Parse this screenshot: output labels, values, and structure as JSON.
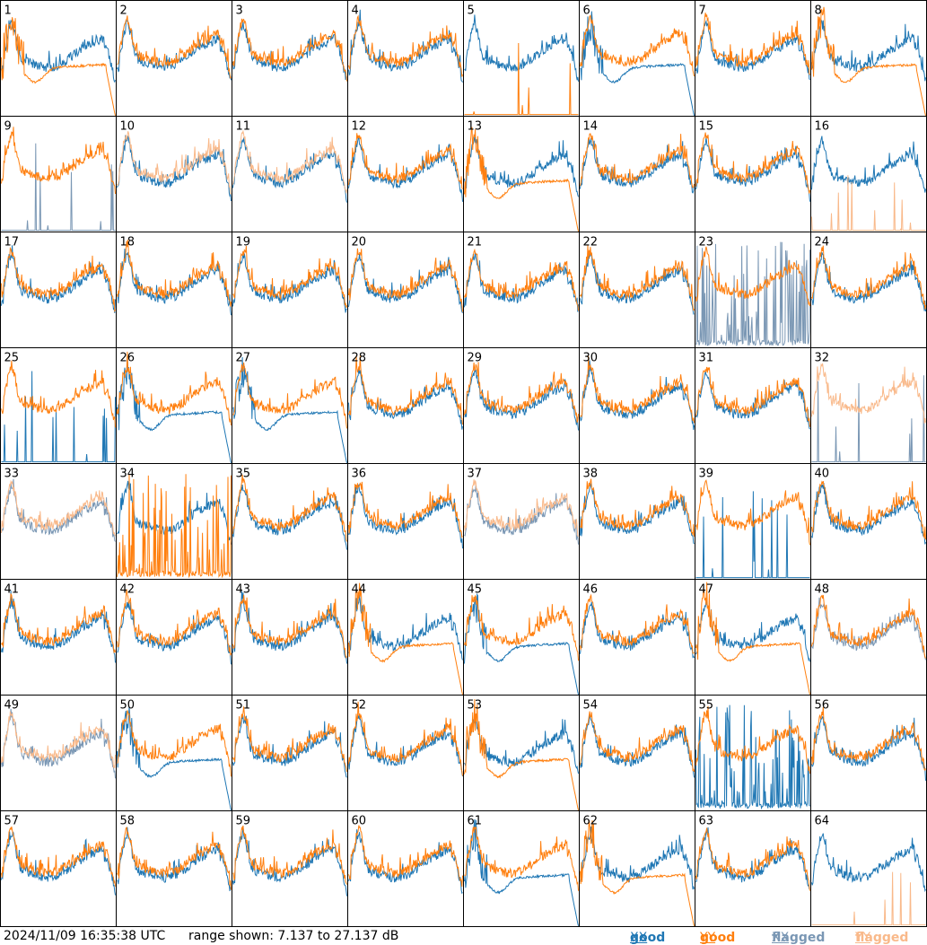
{
  "footer": {
    "timestamp": "2024/11/09 16:35:38 UTC",
    "range_text": "range shown: 7.137 to 27.137 dB"
  },
  "legend": [
    {
      "key": "good_xx",
      "label": "good",
      "pol": "XX",
      "color": "#1f77b4"
    },
    {
      "key": "good_yy",
      "label": "good",
      "pol": "YY",
      "color": "#ff7f0e"
    },
    {
      "key": "flagged_xx",
      "label": "flagged",
      "pol": "XX",
      "color": "#7a97b4"
    },
    {
      "key": "flagged_yy",
      "label": "flagged",
      "pol": "YY",
      "color": "#f9b98a"
    }
  ],
  "chart_data": {
    "type": "line",
    "grid": {
      "rows": 8,
      "cols": 8
    },
    "ylim": [
      7.137,
      27.137
    ],
    "yunit": "dB",
    "panels": [
      {
        "id": "1",
        "xx": "good",
        "yy": "good",
        "xx_shape": "normal",
        "yy_shape": "droop"
      },
      {
        "id": "2",
        "xx": "good",
        "yy": "good",
        "xx_shape": "normal",
        "yy_shape": "normal"
      },
      {
        "id": "3",
        "xx": "good",
        "yy": "good",
        "xx_shape": "normal",
        "yy_shape": "normal"
      },
      {
        "id": "4",
        "xx": "good",
        "yy": "good",
        "xx_shape": "normal",
        "yy_shape": "normal"
      },
      {
        "id": "5",
        "xx": "good",
        "yy": "good",
        "xx_shape": "normal",
        "yy_shape": "dead"
      },
      {
        "id": "6",
        "xx": "good",
        "yy": "good",
        "xx_shape": "droop",
        "yy_shape": "normal"
      },
      {
        "id": "7",
        "xx": "good",
        "yy": "good",
        "xx_shape": "normal",
        "yy_shape": "normal"
      },
      {
        "id": "8",
        "xx": "good",
        "yy": "good",
        "xx_shape": "normal",
        "yy_shape": "droop"
      },
      {
        "id": "9",
        "xx": "flagged",
        "yy": "good",
        "xx_shape": "dead",
        "yy_shape": "normal"
      },
      {
        "id": "10",
        "xx": "good",
        "yy": "flagged",
        "xx_shape": "normal",
        "yy_shape": "normal"
      },
      {
        "id": "11",
        "xx": "good",
        "yy": "flagged",
        "xx_shape": "normal",
        "yy_shape": "normal"
      },
      {
        "id": "12",
        "xx": "good",
        "yy": "good",
        "xx_shape": "normal",
        "yy_shape": "normal"
      },
      {
        "id": "13",
        "xx": "good",
        "yy": "good",
        "xx_shape": "normal",
        "yy_shape": "droop"
      },
      {
        "id": "14",
        "xx": "good",
        "yy": "good",
        "xx_shape": "normal",
        "yy_shape": "normal"
      },
      {
        "id": "15",
        "xx": "good",
        "yy": "good",
        "xx_shape": "normal",
        "yy_shape": "normal"
      },
      {
        "id": "16",
        "xx": "good",
        "yy": "flagged",
        "xx_shape": "normal",
        "yy_shape": "dead"
      },
      {
        "id": "17",
        "xx": "good",
        "yy": "good",
        "xx_shape": "normal",
        "yy_shape": "normal"
      },
      {
        "id": "18",
        "xx": "good",
        "yy": "good",
        "xx_shape": "normal",
        "yy_shape": "normal"
      },
      {
        "id": "19",
        "xx": "good",
        "yy": "good",
        "xx_shape": "normal",
        "yy_shape": "normal"
      },
      {
        "id": "20",
        "xx": "good",
        "yy": "good",
        "xx_shape": "normal",
        "yy_shape": "normal"
      },
      {
        "id": "21",
        "xx": "good",
        "yy": "good",
        "xx_shape": "normal",
        "yy_shape": "normal"
      },
      {
        "id": "22",
        "xx": "good",
        "yy": "good",
        "xx_shape": "normal",
        "yy_shape": "normal"
      },
      {
        "id": "23",
        "xx": "flagged",
        "yy": "good",
        "xx_shape": "noisy",
        "yy_shape": "normal"
      },
      {
        "id": "24",
        "xx": "good",
        "yy": "good",
        "xx_shape": "normal",
        "yy_shape": "normal"
      },
      {
        "id": "25",
        "xx": "good",
        "yy": "good",
        "xx_shape": "dead",
        "yy_shape": "normal"
      },
      {
        "id": "26",
        "xx": "good",
        "yy": "good",
        "xx_shape": "droop",
        "yy_shape": "normal"
      },
      {
        "id": "27",
        "xx": "good",
        "yy": "good",
        "xx_shape": "droop",
        "yy_shape": "normal"
      },
      {
        "id": "28",
        "xx": "good",
        "yy": "good",
        "xx_shape": "normal",
        "yy_shape": "normal"
      },
      {
        "id": "29",
        "xx": "good",
        "yy": "good",
        "xx_shape": "normal",
        "yy_shape": "normal"
      },
      {
        "id": "30",
        "xx": "good",
        "yy": "good",
        "xx_shape": "normal",
        "yy_shape": "normal"
      },
      {
        "id": "31",
        "xx": "good",
        "yy": "good",
        "xx_shape": "normal",
        "yy_shape": "normal"
      },
      {
        "id": "32",
        "xx": "flagged",
        "yy": "flagged",
        "xx_shape": "dead",
        "yy_shape": "normal"
      },
      {
        "id": "33",
        "xx": "flagged",
        "yy": "flagged",
        "xx_shape": "normal",
        "yy_shape": "normal"
      },
      {
        "id": "34",
        "xx": "good",
        "yy": "good",
        "xx_shape": "normal",
        "yy_shape": "noisy"
      },
      {
        "id": "35",
        "xx": "good",
        "yy": "good",
        "xx_shape": "normal",
        "yy_shape": "normal"
      },
      {
        "id": "36",
        "xx": "good",
        "yy": "good",
        "xx_shape": "normal",
        "yy_shape": "normal"
      },
      {
        "id": "37",
        "xx": "flagged",
        "yy": "flagged",
        "xx_shape": "normal",
        "yy_shape": "normal"
      },
      {
        "id": "38",
        "xx": "good",
        "yy": "good",
        "xx_shape": "normal",
        "yy_shape": "normal"
      },
      {
        "id": "39",
        "xx": "good",
        "yy": "good",
        "xx_shape": "dead",
        "yy_shape": "normal"
      },
      {
        "id": "40",
        "xx": "good",
        "yy": "good",
        "xx_shape": "normal",
        "yy_shape": "normal"
      },
      {
        "id": "41",
        "xx": "good",
        "yy": "good",
        "xx_shape": "normal",
        "yy_shape": "normal"
      },
      {
        "id": "42",
        "xx": "good",
        "yy": "good",
        "xx_shape": "normal",
        "yy_shape": "normal"
      },
      {
        "id": "43",
        "xx": "good",
        "yy": "good",
        "xx_shape": "normal",
        "yy_shape": "normal"
      },
      {
        "id": "44",
        "xx": "good",
        "yy": "good",
        "xx_shape": "normal",
        "yy_shape": "droop"
      },
      {
        "id": "45",
        "xx": "good",
        "yy": "good",
        "xx_shape": "droop",
        "yy_shape": "normal"
      },
      {
        "id": "46",
        "xx": "good",
        "yy": "good",
        "xx_shape": "normal",
        "yy_shape": "normal"
      },
      {
        "id": "47",
        "xx": "good",
        "yy": "good",
        "xx_shape": "normal",
        "yy_shape": "droop"
      },
      {
        "id": "48",
        "xx": "flagged",
        "yy": "good",
        "xx_shape": "normal",
        "yy_shape": "normal"
      },
      {
        "id": "49",
        "xx": "flagged",
        "yy": "flagged",
        "xx_shape": "normal",
        "yy_shape": "normal"
      },
      {
        "id": "50",
        "xx": "good",
        "yy": "good",
        "xx_shape": "droop",
        "yy_shape": "normal"
      },
      {
        "id": "51",
        "xx": "good",
        "yy": "good",
        "xx_shape": "normal",
        "yy_shape": "normal"
      },
      {
        "id": "52",
        "xx": "good",
        "yy": "good",
        "xx_shape": "normal",
        "yy_shape": "normal"
      },
      {
        "id": "53",
        "xx": "good",
        "yy": "good",
        "xx_shape": "normal",
        "yy_shape": "droop"
      },
      {
        "id": "54",
        "xx": "good",
        "yy": "good",
        "xx_shape": "normal",
        "yy_shape": "normal"
      },
      {
        "id": "55",
        "xx": "good",
        "yy": "good",
        "xx_shape": "noisy",
        "yy_shape": "normal"
      },
      {
        "id": "56",
        "xx": "good",
        "yy": "good",
        "xx_shape": "normal",
        "yy_shape": "normal"
      },
      {
        "id": "57",
        "xx": "good",
        "yy": "good",
        "xx_shape": "normal",
        "yy_shape": "normal"
      },
      {
        "id": "58",
        "xx": "good",
        "yy": "good",
        "xx_shape": "normal",
        "yy_shape": "normal"
      },
      {
        "id": "59",
        "xx": "good",
        "yy": "good",
        "xx_shape": "normal",
        "yy_shape": "normal"
      },
      {
        "id": "60",
        "xx": "good",
        "yy": "good",
        "xx_shape": "normal",
        "yy_shape": "normal"
      },
      {
        "id": "61",
        "xx": "good",
        "yy": "good",
        "xx_shape": "droop",
        "yy_shape": "normal"
      },
      {
        "id": "62",
        "xx": "good",
        "yy": "good",
        "xx_shape": "normal",
        "yy_shape": "droop"
      },
      {
        "id": "63",
        "xx": "good",
        "yy": "good",
        "xx_shape": "normal",
        "yy_shape": "normal"
      },
      {
        "id": "64",
        "xx": "good",
        "yy": "flagged",
        "xx_shape": "normal",
        "yy_shape": "dead"
      }
    ]
  }
}
